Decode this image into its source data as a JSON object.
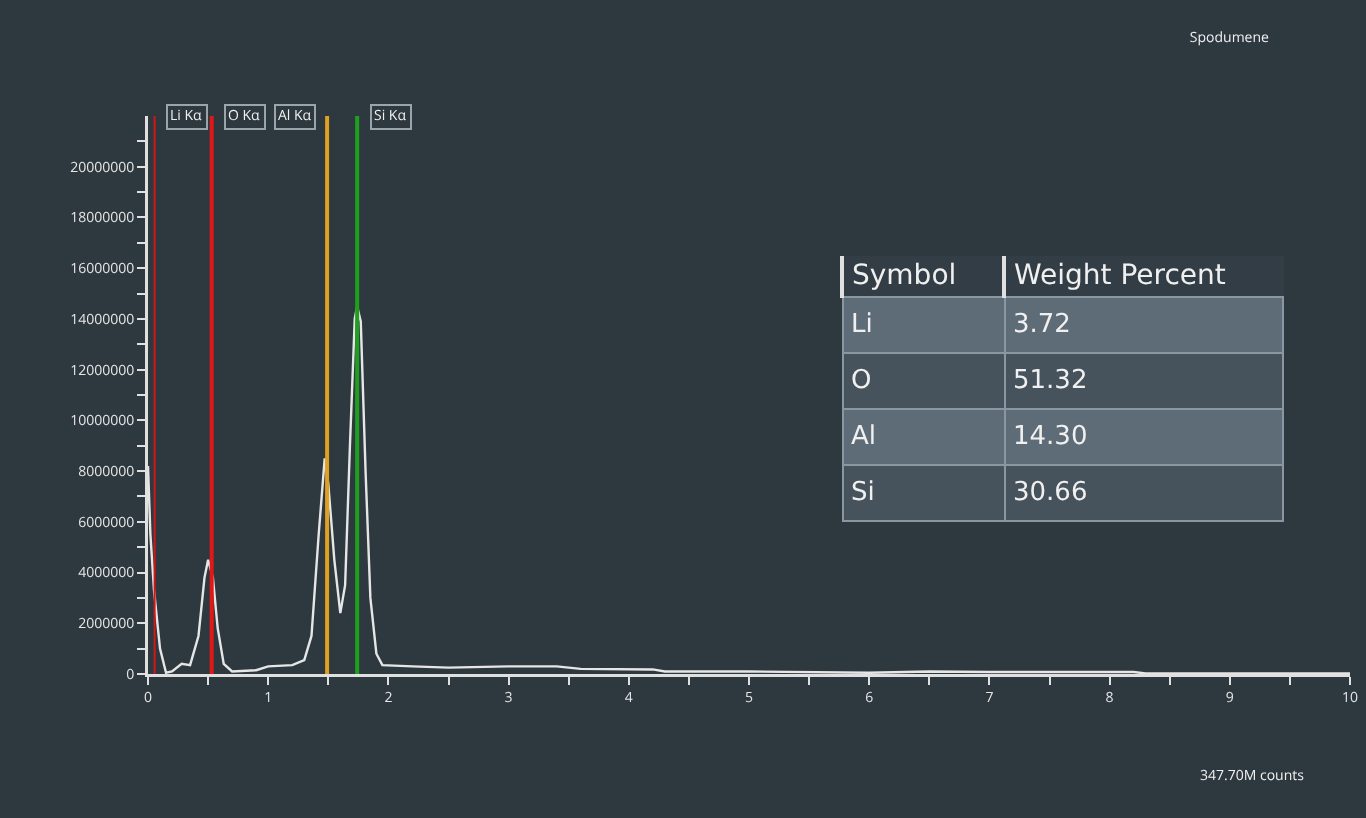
{
  "chart_data": [
    {
      "type": "line",
      "title": "Spodumene",
      "x": [
        0,
        0.02,
        0.05,
        0.1,
        0.15,
        0.2,
        0.28,
        0.35,
        0.42,
        0.47,
        0.5,
        0.54,
        0.58,
        0.63,
        0.7,
        0.9,
        1.0,
        1.2,
        1.3,
        1.36,
        1.42,
        1.47,
        1.5,
        1.55,
        1.6,
        1.64,
        1.68,
        1.72,
        1.74,
        1.77,
        1.81,
        1.85,
        1.9,
        1.95,
        2.2,
        2.5,
        3.0,
        3.4,
        3.6,
        4.2,
        4.3,
        5,
        6,
        6.5,
        7,
        8.2,
        8.3,
        10
      ],
      "series": [
        {
          "color": "#e6e6e6",
          "values": [
            8200000,
            5500000,
            3300000,
            1000000,
            50000,
            100000,
            400000,
            350000,
            1500000,
            3800000,
            4500000,
            3800000,
            1800000,
            400000,
            100000,
            150000,
            300000,
            350000,
            550000,
            1500000,
            5500000,
            8500000,
            7500000,
            4500000,
            2400000,
            3500000,
            9000000,
            14000000,
            14500000,
            13900000,
            8000000,
            3000000,
            800000,
            350000,
            300000,
            250000,
            300000,
            300000,
            200000,
            180000,
            100000,
            100000,
            50000,
            100000,
            80000,
            80000,
            20000,
            20000
          ]
        }
      ],
      "xlim": [
        0,
        10
      ],
      "ylim": [
        0,
        22000000
      ],
      "xticks": [
        0,
        {
          "value": 0.5,
          "label": null
        },
        1,
        {
          "value": 1.5,
          "label": null
        },
        2,
        {
          "value": 2.5,
          "label": null
        },
        3,
        {
          "value": 3.5,
          "label": null
        },
        4,
        {
          "value": 4.5,
          "label": null
        },
        5,
        {
          "value": 5.5,
          "label": null
        },
        6,
        {
          "value": 6.5,
          "label": null
        },
        7,
        {
          "value": 7.5,
          "label": null
        },
        8,
        {
          "value": 8.5,
          "label": null
        },
        9,
        {
          "value": 9.5,
          "label": null
        },
        10
      ],
      "yticks": [
        0,
        {
          "value": 1000000,
          "label": null
        },
        2000000,
        {
          "value": 3000000,
          "label": null
        },
        4000000,
        {
          "value": 5000000,
          "label": null
        },
        6000000,
        {
          "value": 7000000,
          "label": null
        },
        8000000,
        {
          "value": 9000000,
          "label": null
        },
        10000000,
        {
          "value": 11000000,
          "label": null
        },
        12000000,
        {
          "value": 13000000,
          "label": null
        },
        14000000,
        {
          "value": 15000000,
          "label": null
        },
        16000000,
        {
          "value": 17000000,
          "label": null
        },
        18000000,
        {
          "value": 19000000,
          "label": null
        },
        20000000,
        {
          "value": 21000000,
          "label": null
        }
      ],
      "ref_lines": [
        {
          "axis": "x",
          "value": 0.055,
          "label": "Li Kα",
          "color": "#d01818"
        },
        {
          "axis": "x",
          "value": 0.53,
          "label": "O Kα",
          "color": "#e01818"
        },
        {
          "axis": "x",
          "value": 1.49,
          "label": "Al Kα",
          "color": "#e0a020"
        },
        {
          "axis": "x",
          "value": 1.74,
          "label": "Si Kα",
          "color": "#1ea01e"
        }
      ],
      "annotations": [
        "347.70M counts"
      ],
      "grid": false
    },
    {
      "type": "other",
      "xlabel": "Symbol",
      "ylabel": "Weight Percent",
      "categories": [
        "Li",
        "O",
        "Al",
        "Si"
      ],
      "values": [
        3.72,
        51.32,
        14.3,
        30.66
      ],
      "value_labels": [
        "3.72",
        "51.32",
        "14.30",
        "30.66"
      ]
    }
  ]
}
